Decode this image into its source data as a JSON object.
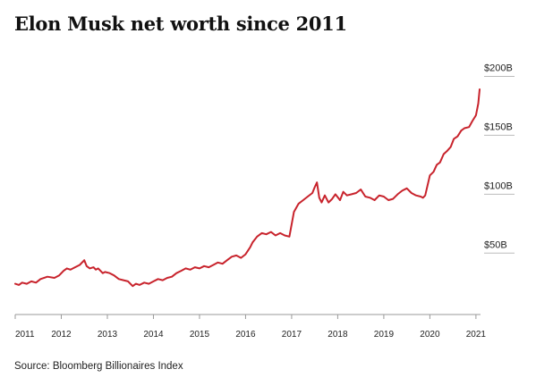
{
  "title": "Elon Musk net worth since 2011",
  "source": "Source: Bloomberg Billionaires Index",
  "colors": {
    "line": "#c8232c",
    "axis": "#999999",
    "text": "#222222",
    "tickline": "#bbbbbb"
  },
  "chart_data": {
    "type": "line",
    "title": "Elon Musk net worth since 2011",
    "xlabel": "",
    "ylabel": "",
    "x_ticks": [
      "2011",
      "2012",
      "2013",
      "2014",
      "2015",
      "2016",
      "2017",
      "2018",
      "2019",
      "2020",
      "2021"
    ],
    "y_ticks": [
      "$50B",
      "$100B",
      "$150B",
      "$200B"
    ],
    "y_tick_values": [
      50,
      100,
      150,
      200
    ],
    "xlim": [
      2011.0,
      2021.08
    ],
    "ylim": [
      0,
      200
    ],
    "grid": false,
    "series": [
      {
        "x": [
          2011.0,
          2011.08,
          2011.15,
          2011.25,
          2011.35,
          2011.45,
          2011.55,
          2011.7,
          2011.85,
          2011.95,
          2012.05,
          2012.12,
          2012.2,
          2012.3,
          2012.4,
          2012.5,
          2012.55,
          2012.62,
          2012.7,
          2012.75,
          2012.8,
          2012.85,
          2012.9,
          2012.95,
          2013.05,
          2013.15,
          2013.25,
          2013.35,
          2013.45,
          2013.55,
          2013.62,
          2013.7,
          2013.8,
          2013.9,
          2014.0,
          2014.1,
          2014.2,
          2014.3,
          2014.4,
          2014.5,
          2014.6,
          2014.7,
          2014.8,
          2014.9,
          2015.0,
          2015.1,
          2015.2,
          2015.3,
          2015.4,
          2015.5,
          2015.6,
          2015.7,
          2015.8,
          2015.9,
          2016.0,
          2016.1,
          2016.15,
          2016.25,
          2016.35,
          2016.45,
          2016.55,
          2016.65,
          2016.75,
          2016.85,
          2016.95,
          2017.05,
          2017.15,
          2017.25,
          2017.35,
          2017.45,
          2017.5,
          2017.55,
          2017.6,
          2017.65,
          2017.72,
          2017.8,
          2017.88,
          2017.95,
          2018.05,
          2018.12,
          2018.2,
          2018.3,
          2018.4,
          2018.5,
          2018.6,
          2018.7,
          2018.8,
          2018.9,
          2019.0,
          2019.1,
          2019.2,
          2019.3,
          2019.4,
          2019.5,
          2019.6,
          2019.7,
          2019.8,
          2019.85,
          2019.9,
          2020.0,
          2020.08,
          2020.15,
          2020.22,
          2020.3,
          2020.38,
          2020.45,
          2020.52,
          2020.6,
          2020.68,
          2020.75,
          2020.85,
          2020.92,
          2021.0,
          2021.05,
          2021.08
        ],
        "y": [
          27,
          26,
          28,
          27,
          29,
          28,
          31,
          33,
          32,
          34,
          38,
          40,
          39,
          41,
          43,
          47,
          42,
          40,
          41,
          39,
          40,
          38,
          36,
          37,
          36,
          34,
          31,
          30,
          29,
          25,
          27,
          26,
          28,
          27,
          29,
          31,
          30,
          32,
          33,
          36,
          38,
          40,
          39,
          41,
          40,
          42,
          41,
          43,
          45,
          44,
          47,
          50,
          51,
          49,
          52,
          58,
          62,
          67,
          70,
          69,
          71,
          68,
          70,
          68,
          67,
          88,
          95,
          98,
          101,
          104,
          109,
          113,
          100,
          96,
          102,
          96,
          99,
          103,
          98,
          105,
          102,
          103,
          104,
          107,
          101,
          100,
          98,
          102,
          101,
          98,
          99,
          103,
          106,
          108,
          104,
          102,
          101,
          100,
          102,
          119,
          122,
          128,
          130,
          137,
          140,
          143,
          150,
          152,
          157,
          159,
          160,
          165,
          170,
          180,
          192
        ]
      }
    ]
  }
}
